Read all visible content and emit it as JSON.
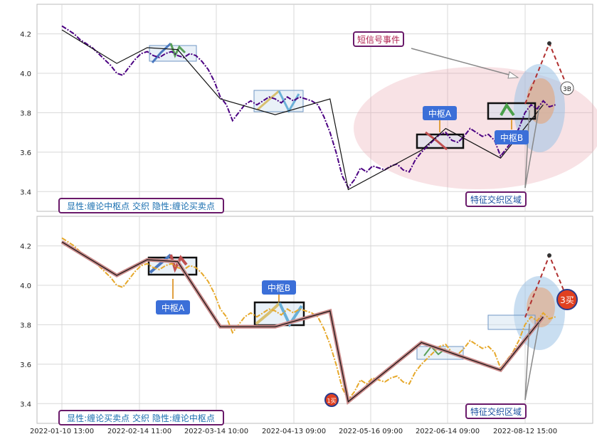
{
  "chart_data": [
    {
      "type": "line",
      "panel": "top",
      "ylim": [
        3.3,
        4.35
      ],
      "y_ticks": [
        "4.2",
        "4.0",
        "3.8",
        "3.6",
        "3.4"
      ],
      "grid": true,
      "legend_text": "显性:缠论中枢点 交织 隐性:缠论买卖点",
      "series": [
        {
          "name": "price",
          "color": "#4b0082",
          "style": "dash-dot",
          "values": [
            4.24,
            4.22,
            4.2,
            4.17,
            4.15,
            4.13,
            4.1,
            4.07,
            4.04,
            4.0,
            3.99,
            4.03,
            4.07,
            4.1,
            4.11,
            4.09,
            4.08,
            4.1,
            4.11,
            4.09,
            4.08,
            4.1,
            4.09,
            4.06,
            4.02,
            3.96,
            3.88,
            3.84,
            3.76,
            3.8,
            3.84,
            3.86,
            3.84,
            3.86,
            3.88,
            3.87,
            3.85,
            3.88,
            3.86,
            3.88,
            3.87,
            3.86,
            3.84,
            3.78,
            3.7,
            3.6,
            3.48,
            3.42,
            3.46,
            3.52,
            3.5,
            3.53,
            3.52,
            3.51,
            3.53,
            3.54,
            3.51,
            3.5,
            3.56,
            3.6,
            3.63,
            3.66,
            3.69,
            3.7,
            3.66,
            3.65,
            3.68,
            3.72,
            3.7,
            3.68,
            3.69,
            3.66,
            3.58,
            3.62,
            3.66,
            3.72,
            3.8,
            3.84,
            3.82,
            3.86,
            3.83,
            3.84
          ]
        },
        {
          "name": "bi",
          "color": "#111111",
          "style": "solid",
          "points": [
            [
              0,
              4.22
            ],
            [
              9,
              4.05
            ],
            [
              14,
              4.13
            ],
            [
              19,
              4.12
            ],
            [
              26,
              3.87
            ],
            [
              35,
              3.79
            ],
            [
              44,
              3.87
            ],
            [
              47,
              3.41
            ],
            [
              59,
              3.61
            ],
            [
              63,
              3.72
            ],
            [
              72,
              3.57
            ],
            [
              79,
              3.84
            ]
          ]
        }
      ],
      "annotations": [
        {
          "label": "短信号事件"
        },
        {
          "label": "中枢A"
        },
        {
          "label": "中枢B"
        },
        {
          "label": "3B"
        },
        {
          "label": "特征交织区域"
        }
      ]
    },
    {
      "type": "line",
      "panel": "bottom",
      "ylim": [
        3.3,
        4.35
      ],
      "y_ticks": [
        "4.2",
        "4.0",
        "3.8",
        "3.6",
        "3.4"
      ],
      "x_ticks": [
        "2022-01-10 13:00",
        "2022-02-14 11:00",
        "2022-03-14 10:00",
        "2022-04-13 09:00",
        "2022-05-16 09:00",
        "2022-06-14 09:00",
        "2022-08-12 15:00"
      ],
      "grid": true,
      "legend_text": "显性:缠论买卖点 交织 隐性:缠论中枢点",
      "series": [
        {
          "name": "price",
          "color": "#e6a82a",
          "style": "dash-dot",
          "values": [
            4.24,
            4.22,
            4.2,
            4.17,
            4.15,
            4.13,
            4.1,
            4.07,
            4.04,
            4.0,
            3.99,
            4.03,
            4.07,
            4.1,
            4.11,
            4.09,
            4.08,
            4.1,
            4.11,
            4.09,
            4.08,
            4.1,
            4.09,
            4.06,
            4.02,
            3.96,
            3.88,
            3.84,
            3.76,
            3.8,
            3.84,
            3.86,
            3.84,
            3.86,
            3.88,
            3.87,
            3.85,
            3.88,
            3.86,
            3.88,
            3.87,
            3.86,
            3.84,
            3.78,
            3.7,
            3.6,
            3.48,
            3.42,
            3.46,
            3.52,
            3.5,
            3.53,
            3.52,
            3.51,
            3.53,
            3.54,
            3.51,
            3.5,
            3.56,
            3.6,
            3.63,
            3.66,
            3.69,
            3.7,
            3.66,
            3.65,
            3.68,
            3.72,
            3.7,
            3.68,
            3.69,
            3.66,
            3.58,
            3.62,
            3.66,
            3.72,
            3.8,
            3.84,
            3.82,
            3.86,
            3.83,
            3.84
          ]
        },
        {
          "name": "bi",
          "color": "#111111",
          "style": "solid",
          "points": [
            [
              0,
              4.22
            ],
            [
              9,
              4.05
            ],
            [
              14,
              4.13
            ],
            [
              19,
              4.12
            ],
            [
              26,
              3.79
            ],
            [
              35,
              3.79
            ],
            [
              44,
              3.87
            ],
            [
              47,
              3.41
            ],
            [
              59,
              3.71
            ],
            [
              72,
              3.57
            ],
            [
              79,
              3.84
            ]
          ]
        }
      ],
      "annotations": [
        {
          "label": "中枢A"
        },
        {
          "label": "中枢B"
        },
        {
          "label": "1买"
        },
        {
          "label": "3买"
        },
        {
          "label": "特征交织区域"
        }
      ]
    }
  ]
}
